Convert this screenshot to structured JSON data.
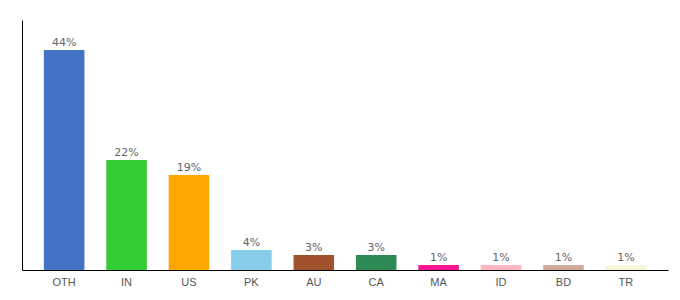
{
  "chart_data": {
    "type": "bar",
    "categories": [
      "OTH",
      "IN",
      "US",
      "PK",
      "AU",
      "CA",
      "MA",
      "ID",
      "BD",
      "TR"
    ],
    "values": [
      44,
      22,
      19,
      4,
      3,
      3,
      1,
      1,
      1,
      1
    ],
    "value_labels": [
      "44%",
      "22%",
      "19%",
      "4%",
      "3%",
      "3%",
      "1%",
      "1%",
      "1%",
      "1%"
    ],
    "data_labels": true,
    "colors": [
      "#4472C4",
      "#33CC33",
      "#FFA500",
      "#87CEEB",
      "#A0522D",
      "#2E8B57",
      "#FF1493",
      "#FFB6C1",
      "#D2A898",
      "#F5F5DC"
    ],
    "ylim": [
      0,
      50
    ],
    "yticks": [],
    "grid": false,
    "tick_labels": "x"
  }
}
